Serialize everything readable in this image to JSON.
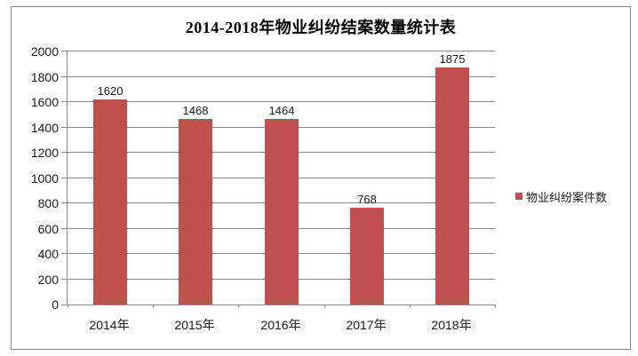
{
  "chart_data": {
    "type": "bar",
    "title": "2014-2018年物业纠纷结案数量统计表",
    "categories": [
      "2014年",
      "2015年",
      "2016年",
      "2017年",
      "2018年"
    ],
    "series": [
      {
        "name": "物业纠纷案件数",
        "values": [
          1620,
          1468,
          1464,
          768,
          1875
        ]
      }
    ],
    "data_labels": [
      "1620",
      "1468",
      "1464",
      "768",
      "1875"
    ],
    "xlabel": "",
    "ylabel": "",
    "ylim": [
      0,
      2000
    ],
    "ytick_step": 200,
    "ytick_labels": [
      "0",
      "200",
      "400",
      "600",
      "800",
      "1000",
      "1200",
      "1400",
      "1600",
      "1800",
      "2000"
    ],
    "grid": true,
    "legend_position": "right",
    "colors": {
      "bar": "#c0504d",
      "grid": "#8a8a8a",
      "axis": "#8a8a8a",
      "frame_border": "#848484",
      "text": "#1a1a1a"
    }
  }
}
